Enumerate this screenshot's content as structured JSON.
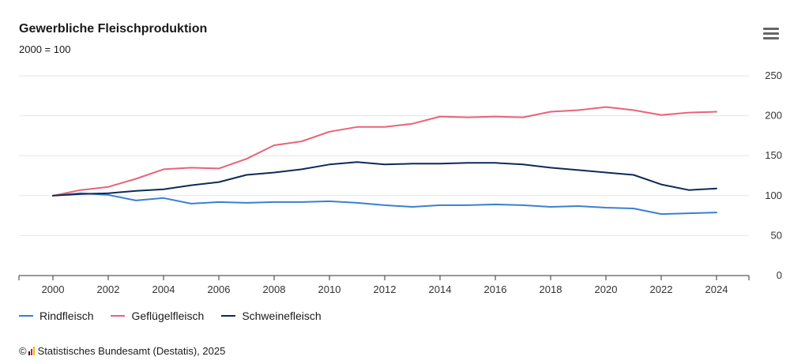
{
  "chart_data": {
    "type": "line",
    "title": "Gewerbliche Fleischproduktion",
    "subtitle": "2000 = 100",
    "x": [
      2000,
      2001,
      2002,
      2003,
      2004,
      2005,
      2006,
      2007,
      2008,
      2009,
      2010,
      2011,
      2012,
      2013,
      2014,
      2015,
      2016,
      2017,
      2018,
      2019,
      2020,
      2021,
      2022,
      2023,
      2024
    ],
    "x_ticks": [
      "2000",
      "2002",
      "2004",
      "2006",
      "2008",
      "2010",
      "2012",
      "2014",
      "2016",
      "2018",
      "2020",
      "2022",
      "2024"
    ],
    "y_ticks": [
      "0",
      "50",
      "100",
      "150",
      "200",
      "250"
    ],
    "ylim": [
      0,
      250
    ],
    "y_axis_position": "right",
    "grid": true,
    "legend_position": "bottom-left",
    "series": [
      {
        "name": "Rindfleisch",
        "color": "#3b7fd1",
        "values": [
          100,
          103,
          101,
          94,
          97,
          90,
          92,
          91,
          92,
          92,
          93,
          91,
          88,
          86,
          88,
          88,
          89,
          88,
          86,
          87,
          85,
          84,
          77,
          78,
          79
        ]
      },
      {
        "name": "Geflügelfleisch",
        "color": "#e8637a",
        "values": [
          100,
          107,
          111,
          121,
          133,
          135,
          134,
          146,
          163,
          168,
          180,
          186,
          186,
          190,
          199,
          198,
          199,
          198,
          205,
          207,
          211,
          207,
          201,
          204,
          205
        ]
      },
      {
        "name": "Schweinefleisch",
        "color": "#0d2a57",
        "values": [
          100,
          102,
          103,
          106,
          108,
          113,
          117,
          126,
          129,
          133,
          139,
          142,
          139,
          140,
          140,
          141,
          141,
          139,
          135,
          132,
          129,
          126,
          114,
          107,
          109
        ]
      }
    ]
  },
  "credits": {
    "copyright": "©",
    "text": "Statistisches Bundesamt (Destatis), 2025",
    "logo_colors": [
      "#1a1a1a",
      "#e30613",
      "#f5b800"
    ]
  },
  "menu": {
    "icon": "hamburger-menu-icon"
  }
}
